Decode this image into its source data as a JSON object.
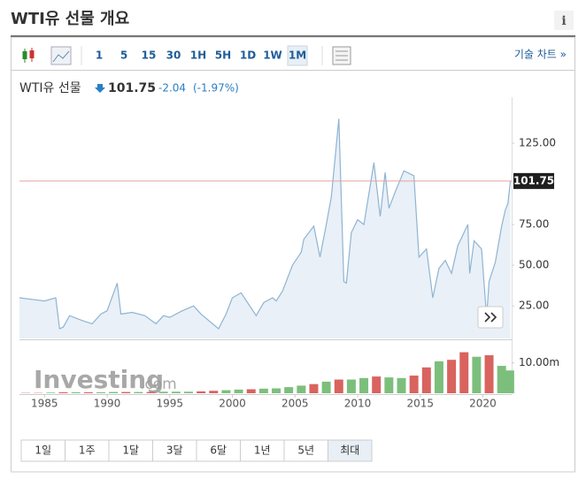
{
  "header": {
    "title": "WTI유 선물 개요",
    "info": "i"
  },
  "toolbar": {
    "intervals": [
      "1",
      "5",
      "15",
      "30",
      "1H",
      "5H",
      "1D",
      "1W",
      "1M"
    ],
    "active_interval": 8,
    "link": "기술 차트 »"
  },
  "quote": {
    "name": "WTI유 선물",
    "last": 101.75,
    "change": -2.04,
    "change_percent": "(-1.97%)"
  },
  "chart_data": {
    "type": "area",
    "x": [
      1983.0,
      1984.0,
      1985.0,
      1985.9,
      1986.2,
      1986.5,
      1987.0,
      1988.0,
      1988.8,
      1989.5,
      1990.0,
      1990.8,
      1991.1,
      1992.0,
      1993.0,
      1993.9,
      1994.5,
      1995.0,
      1996.0,
      1996.9,
      1997.5,
      1998.9,
      1999.5,
      2000.0,
      2000.7,
      2001.9,
      2002.5,
      2003.2,
      2003.5,
      2004.0,
      2004.8,
      2005.5,
      2005.7,
      2006.5,
      2007.0,
      2007.5,
      2007.9,
      2008.5,
      2008.9,
      2009.1,
      2009.5,
      2010.0,
      2010.5,
      2011.3,
      2011.8,
      2012.2,
      2012.5,
      2013.0,
      2013.7,
      2014.5,
      2014.9,
      2015.5,
      2016.0,
      2016.5,
      2017.0,
      2017.5,
      2018.0,
      2018.8,
      2018.95,
      2019.3,
      2019.9,
      2020.3,
      2020.5,
      2021.0,
      2021.5,
      2021.8,
      2022.0,
      2022.2
    ],
    "values": [
      30,
      29,
      28,
      30,
      11,
      12,
      19,
      16,
      14,
      20,
      22,
      39,
      20,
      21,
      19,
      14,
      19,
      18,
      22,
      25,
      20,
      11,
      20,
      30,
      33,
      19,
      27,
      30,
      28,
      34,
      50,
      58,
      66,
      74,
      55,
      75,
      92,
      140,
      40,
      39,
      70,
      78,
      75,
      113,
      80,
      107,
      85,
      95,
      108,
      105,
      55,
      60,
      30,
      48,
      53,
      45,
      62,
      75,
      45,
      65,
      60,
      18,
      40,
      52,
      74,
      84,
      88,
      101.75
    ],
    "color": "#8fb4d3",
    "fill": "#e9f0f7",
    "last_line_color": "#e8a0a0",
    "xlim": [
      1983.0,
      2022.3
    ],
    "xticks": [
      1985,
      1990,
      1995,
      2000,
      2005,
      2010,
      2015,
      2020
    ],
    "ylim": [
      5,
      150
    ],
    "yticks": [
      {
        "value": 25,
        "label": "25.00"
      },
      {
        "value": 50,
        "label": "50.00"
      },
      {
        "value": 75,
        "label": "75.00"
      },
      {
        "value": 125,
        "label": "125.00"
      }
    ],
    "volume": {
      "x": [
        1983.5,
        1984.5,
        1985.5,
        1986.5,
        1987.5,
        1988.5,
        1989.5,
        1990.5,
        1991.5,
        1992.5,
        1993.5,
        1994.5,
        1995.5,
        1996.5,
        1997.5,
        1998.5,
        1999.5,
        2000.5,
        2001.5,
        2002.5,
        2003.5,
        2004.5,
        2005.5,
        2006.5,
        2007.5,
        2008.5,
        2009.5,
        2010.5,
        2011.5,
        2012.5,
        2013.5,
        2014.5,
        2015.5,
        2016.5,
        2017.5,
        2018.5,
        2019.5,
        2020.5,
        2021.5,
        2022.15
      ],
      "values": [
        100000,
        100000,
        200000,
        300000,
        300000,
        300000,
        300000,
        400000,
        400000,
        400000,
        400000,
        500000,
        500000,
        500000,
        600000,
        800000,
        1000000,
        1200000,
        1300000,
        1500000,
        1600000,
        2000000,
        2500000,
        3000000,
        3800000,
        4500000,
        4500000,
        5000000,
        5500000,
        5200000,
        5000000,
        5800000,
        8500000,
        10500000,
        11000000,
        13500000,
        12000000,
        12500000,
        9000000,
        7500000
      ],
      "colors": [
        "#d9635f",
        "#d9635f",
        "#7cbf7c",
        "#d9635f",
        "#7cbf7c",
        "#d9635f",
        "#7cbf7c",
        "#7cbf7c",
        "#d9635f",
        "#7cbf7c",
        "#d9635f",
        "#7cbf7c",
        "#7cbf7c",
        "#7cbf7c",
        "#d9635f",
        "#d9635f",
        "#7cbf7c",
        "#7cbf7c",
        "#d9635f",
        "#7cbf7c",
        "#7cbf7c",
        "#7cbf7c",
        "#7cbf7c",
        "#d9635f",
        "#7cbf7c",
        "#d9635f",
        "#7cbf7c",
        "#7cbf7c",
        "#d9635f",
        "#7cbf7c",
        "#7cbf7c",
        "#d9635f",
        "#d9635f",
        "#7cbf7c",
        "#d9635f",
        "#d9635f",
        "#7cbf7c",
        "#d9635f",
        "#7cbf7c",
        "#7cbf7c"
      ],
      "ylim": [
        0,
        16000000
      ],
      "yticks": [
        {
          "value": 10000000,
          "label": "10.00m"
        }
      ]
    },
    "watermark": [
      "Investing",
      ".com"
    ]
  },
  "ranges": {
    "buttons": [
      "1일",
      "1주",
      "1달",
      "3달",
      "6달",
      "1년",
      "5년",
      "최대"
    ],
    "active": 7
  }
}
